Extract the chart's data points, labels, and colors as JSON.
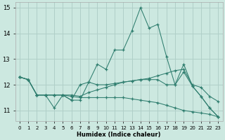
{
  "xlabel": "Humidex (Indice chaleur)",
  "x": [
    0,
    1,
    2,
    3,
    4,
    5,
    6,
    7,
    8,
    9,
    10,
    11,
    12,
    13,
    14,
    15,
    16,
    17,
    18,
    19,
    20,
    21,
    22,
    23
  ],
  "line1": [
    12.3,
    12.2,
    11.6,
    11.6,
    11.1,
    11.6,
    11.4,
    11.4,
    12.1,
    12.8,
    12.6,
    13.35,
    13.35,
    14.1,
    15.0,
    14.2,
    14.35,
    13.1,
    12.0,
    12.8,
    11.95,
    11.55,
    11.1,
    10.75
  ],
  "line2": [
    12.3,
    12.2,
    11.6,
    11.6,
    11.6,
    11.6,
    11.6,
    11.55,
    11.7,
    11.8,
    11.9,
    12.0,
    12.1,
    12.15,
    12.2,
    12.25,
    12.35,
    12.45,
    12.55,
    12.6,
    12.0,
    11.9,
    11.55,
    11.35
  ],
  "line3": [
    12.3,
    12.2,
    11.6,
    11.6,
    11.6,
    11.6,
    11.55,
    11.5,
    11.5,
    11.5,
    11.5,
    11.5,
    11.5,
    11.45,
    11.4,
    11.35,
    11.3,
    11.2,
    11.1,
    11.0,
    10.95,
    10.9,
    10.85,
    10.75
  ],
  "line4": [
    12.3,
    12.2,
    11.6,
    11.6,
    11.6,
    11.6,
    11.4,
    12.0,
    12.1,
    12.0,
    12.0,
    12.05,
    12.1,
    12.15,
    12.2,
    12.2,
    12.2,
    12.0,
    12.0,
    12.5,
    11.95,
    11.55,
    11.1,
    10.75
  ],
  "color": "#2e7d6e",
  "bg_color": "#cce8e0",
  "grid_color": "#b0cfc8",
  "ylim": [
    10.6,
    15.2
  ],
  "yticks": [
    11,
    12,
    13,
    14,
    15
  ],
  "xlim": [
    -0.5,
    23.5
  ],
  "xticks": [
    0,
    1,
    2,
    3,
    4,
    5,
    6,
    7,
    8,
    9,
    10,
    11,
    12,
    13,
    14,
    15,
    16,
    17,
    18,
    19,
    20,
    21,
    22,
    23
  ]
}
